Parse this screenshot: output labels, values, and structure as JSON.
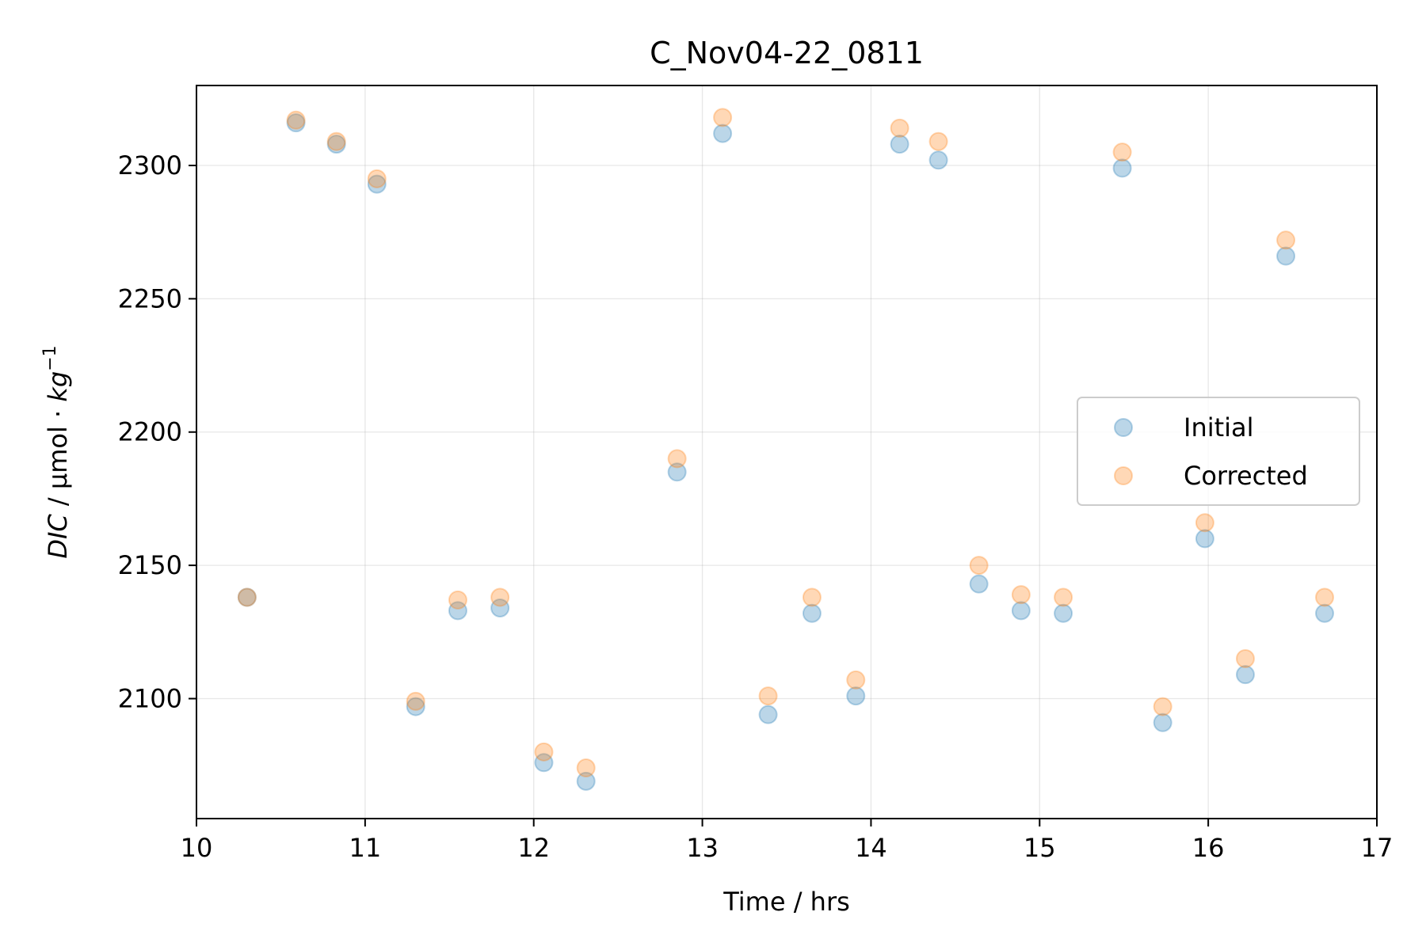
{
  "chart_data": {
    "type": "scatter",
    "title": "C_Nov04-22_0811",
    "xlabel": "Time / hrs",
    "ylabel": {
      "prefix": "DIC",
      "middle": " / µmol · ",
      "unit": "kg",
      "exponent": "−1"
    },
    "xlim": [
      10,
      17
    ],
    "ylim": [
      2055,
      2330
    ],
    "xticks": [
      10,
      11,
      12,
      13,
      14,
      15,
      16,
      17
    ],
    "yticks": [
      2100,
      2150,
      2200,
      2250,
      2300
    ],
    "grid": true,
    "legend_position": "center-right",
    "series": [
      {
        "name": "Initial",
        "color": "#1f77b4",
        "x": [
          10.3,
          10.59,
          10.83,
          11.07,
          11.3,
          11.55,
          11.8,
          12.06,
          12.31,
          12.85,
          13.12,
          13.39,
          13.65,
          13.91,
          14.17,
          14.4,
          14.64,
          14.89,
          15.14,
          15.49,
          15.73,
          15.98,
          16.22,
          16.46,
          16.69
        ],
        "y": [
          2138,
          2316,
          2308,
          2293,
          2097,
          2133,
          2134,
          2076,
          2069,
          2185,
          2312,
          2094,
          2132,
          2101,
          2308,
          2302,
          2143,
          2133,
          2132,
          2299,
          2091,
          2160,
          2109,
          2266,
          2132
        ]
      },
      {
        "name": "Corrected",
        "color": "#ff7f0e",
        "x": [
          10.3,
          10.59,
          10.83,
          11.07,
          11.3,
          11.55,
          11.8,
          12.06,
          12.31,
          12.85,
          13.12,
          13.39,
          13.65,
          13.91,
          14.17,
          14.4,
          14.64,
          14.89,
          15.14,
          15.49,
          15.73,
          15.98,
          16.22,
          16.46,
          16.69
        ],
        "y": [
          2138,
          2317,
          2309,
          2295,
          2099,
          2137,
          2138,
          2080,
          2074,
          2190,
          2318,
          2101,
          2138,
          2107,
          2314,
          2309,
          2150,
          2139,
          2138,
          2305,
          2097,
          2166,
          2115,
          2272,
          2138
        ]
      }
    ]
  }
}
